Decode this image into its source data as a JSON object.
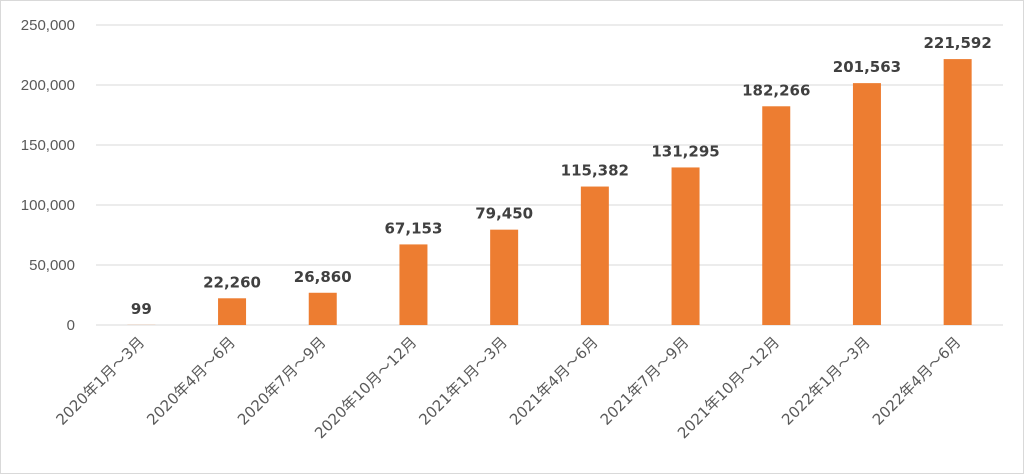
{
  "chart_data": {
    "type": "bar",
    "categories": [
      "2020年1月～3月",
      "2020年4月～6月",
      "2020年7月～9月",
      "2020年10月～12月",
      "2021年1月～3月",
      "2021年4月～6月",
      "2021年7月～9月",
      "2021年10月～12月",
      "2022年1月～3月",
      "2022年4月～6月"
    ],
    "values": [
      99,
      22260,
      26860,
      67153,
      79450,
      115382,
      131295,
      182266,
      201563,
      221592
    ],
    "data_labels": [
      "99",
      "22,260",
      "26,860",
      "67,153",
      "79,450",
      "115,382",
      "131,295",
      "182,266",
      "201,563",
      "221,592"
    ],
    "y_ticks": [
      0,
      50000,
      100000,
      150000,
      200000,
      250000
    ],
    "y_tick_labels": [
      "0",
      "50,000",
      "100,000",
      "150,000",
      "200,000",
      "250,000"
    ],
    "ylim": [
      0,
      250000
    ],
    "title": "",
    "xlabel": "",
    "ylabel": "",
    "grid": true,
    "bar_color": "#ED7D31",
    "grid_color": "#D9D9D9",
    "legend": "none"
  }
}
